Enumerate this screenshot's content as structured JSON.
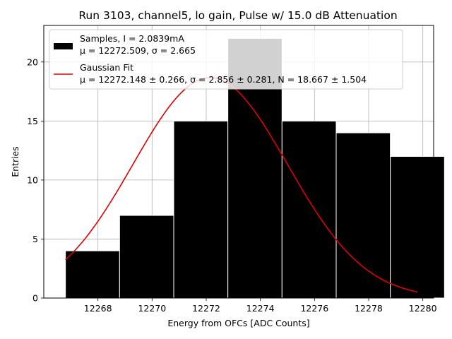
{
  "chart_data": {
    "type": "bar",
    "title": "Run 3103, channel5, lo gain, Pulse w/ 15.0 dB Attenuation",
    "xlabel": "Energy from OFCs [ADC Counts]",
    "ylabel": "Entries",
    "xlim": [
      12266.0,
      12280.4
    ],
    "ylim": [
      0,
      23.1
    ],
    "xticks": [
      12268,
      12270,
      12272,
      12274,
      12276,
      12278,
      12280
    ],
    "yticks": [
      0,
      5,
      10,
      15,
      20
    ],
    "grid": true,
    "legend_position": "upper-left",
    "bin_edges": [
      12266.8,
      12268.8,
      12270.8,
      12272.8,
      12274.8,
      12276.8,
      12278.8,
      12280.8
    ],
    "bins": [
      {
        "x0": 12266.8,
        "x1": 12268.8,
        "value": 4
      },
      {
        "x0": 12268.8,
        "x1": 12270.8,
        "value": 7
      },
      {
        "x0": 12270.8,
        "x1": 12272.8,
        "value": 15
      },
      {
        "x0": 12272.8,
        "x1": 12274.8,
        "value": 22
      },
      {
        "x0": 12274.8,
        "x1": 12276.8,
        "value": 15
      },
      {
        "x0": 12276.8,
        "x1": 12278.8,
        "value": 14
      },
      {
        "x0": 12278.8,
        "x1": 12280.8,
        "value": 12
      }
    ],
    "series": [
      {
        "name": "Samples, I = 2.0839mA",
        "stats": "μ = 12272.509, σ = 2.665",
        "kind": "histogram",
        "color": "#000000",
        "x": [
          12267.3,
          12269.3,
          12271.3,
          12273.3,
          12275.3,
          12277.3,
          12279.3
        ],
        "values": [
          4,
          7,
          15,
          22,
          15,
          14,
          12
        ]
      },
      {
        "name": "Gaussian Fit",
        "stats": "μ = 12272.148 ± 0.266, σ = 2.856 ± 0.281, N = 18.667 ± 1.504",
        "kind": "line",
        "color": "#e00000",
        "mu": 12272.148,
        "sigma": 2.856,
        "N": 18.667,
        "x_range": [
          12266.8,
          12279.8
        ]
      }
    ]
  }
}
